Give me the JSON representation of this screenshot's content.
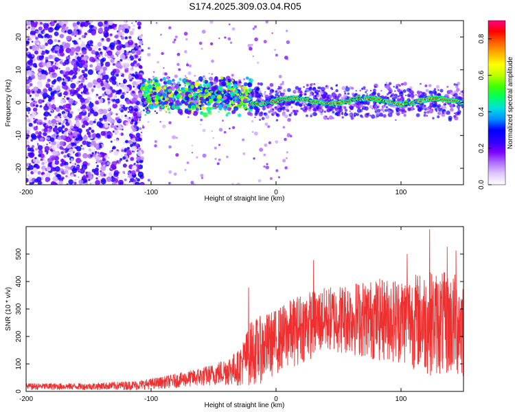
{
  "title": "S174.2025.309.03.04.R05",
  "chart_data": [
    {
      "type": "heatmap",
      "name": "spectrogram",
      "xlabel": "Height of straight line (km)",
      "ylabel": "Frequency (Hz)",
      "xlim": [
        -200,
        150
      ],
      "ylim": [
        -25,
        25
      ],
      "xticks": [
        -200,
        -100,
        0,
        100
      ],
      "yticks": [
        -20,
        -10,
        0,
        10,
        20
      ],
      "colorbar": {
        "label": "Normalized spectral amplitude",
        "range": [
          0.0,
          0.9
        ],
        "ticks": [
          0.0,
          0.2,
          0.4,
          0.6,
          0.8
        ],
        "colors": [
          "#ffffff",
          "#e0c8ff",
          "#b070ff",
          "#7a00ff",
          "#2a00ff",
          "#0000ff",
          "#0090ff",
          "#00e0e0",
          "#00ff60",
          "#40ff00",
          "#c0ff00",
          "#ffff00",
          "#ffb000",
          "#ff6000",
          "#ff0000",
          "#ff0080"
        ]
      },
      "regions": [
        {
          "x_range": [
            -200,
            -107
          ],
          "description": "broadband noise",
          "freq_range": [
            -25,
            25
          ],
          "amplitude": 0.15
        },
        {
          "x_range": [
            -107,
            -20
          ],
          "description": "emerging signal",
          "freq_center": 2,
          "freq_spread": 6,
          "amplitude": 0.35
        },
        {
          "x_range": [
            -20,
            150
          ],
          "description": "steady tone near 0 Hz",
          "freq_center": 0.5,
          "freq_spread": 2,
          "amplitude": 0.8
        }
      ]
    },
    {
      "type": "line",
      "name": "snr",
      "xlabel": "Height of straight line (km)",
      "ylabel": "SNR (10 * v/v)",
      "xlim": [
        -200,
        150
      ],
      "ylim": [
        0,
        600
      ],
      "xticks": [
        -200,
        -100,
        0,
        100
      ],
      "yticks": [
        0,
        100,
        200,
        300,
        400,
        500
      ],
      "color": "#ee3030",
      "series": [
        {
          "name": "SNR",
          "envelope": [
            {
              "x": -200,
              "low": 5,
              "high": 30
            },
            {
              "x": -150,
              "low": 5,
              "high": 30
            },
            {
              "x": -110,
              "low": 5,
              "high": 40
            },
            {
              "x": -90,
              "low": 10,
              "high": 55
            },
            {
              "x": -70,
              "low": 15,
              "high": 75
            },
            {
              "x": -50,
              "low": 20,
              "high": 100
            },
            {
              "x": -30,
              "low": 20,
              "high": 150
            },
            {
              "x": -20,
              "low": 20,
              "high": 260
            },
            {
              "x": -10,
              "low": 30,
              "high": 280
            },
            {
              "x": 0,
              "low": 60,
              "high": 300
            },
            {
              "x": 20,
              "low": 100,
              "high": 360
            },
            {
              "x": 40,
              "low": 140,
              "high": 380
            },
            {
              "x": 60,
              "low": 130,
              "high": 400
            },
            {
              "x": 80,
              "low": 110,
              "high": 410
            },
            {
              "x": 100,
              "low": 100,
              "high": 420
            },
            {
              "x": 120,
              "low": 60,
              "high": 440
            },
            {
              "x": 150,
              "low": 40,
              "high": 430
            }
          ],
          "peaks": [
            {
              "x": -22,
              "y": 378
            },
            {
              "x": 30,
              "y": 478
            },
            {
              "x": 105,
              "y": 500
            },
            {
              "x": 123,
              "y": 590
            },
            {
              "x": 137,
              "y": 527
            },
            {
              "x": 144,
              "y": 513
            }
          ]
        }
      ]
    }
  ]
}
